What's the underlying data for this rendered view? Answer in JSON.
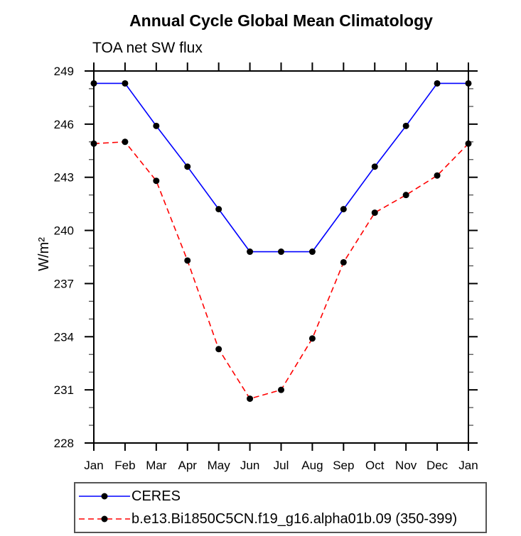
{
  "chart_data": {
    "type": "line",
    "title": "Annual Cycle Global Mean Climatology",
    "subtitle": "TOA net SW flux",
    "ylabel": "W/m²",
    "categories": [
      "Jan",
      "Feb",
      "Mar",
      "Apr",
      "May",
      "Jun",
      "Jul",
      "Aug",
      "Sep",
      "Oct",
      "Nov",
      "Dec",
      "Jan"
    ],
    "ylim": [
      228,
      249
    ],
    "yticks": [
      228,
      231,
      234,
      237,
      240,
      243,
      246,
      249
    ],
    "yminor_step": 1,
    "grid": false,
    "legend_position": "bottom",
    "axis_color": "#000000",
    "marker_color": "#000000",
    "series": [
      {
        "name": "CERES",
        "color": "#0000ff",
        "style": "solid",
        "marker": "filled-circle",
        "values": [
          248.3,
          248.3,
          245.9,
          243.6,
          241.2,
          238.8,
          238.8,
          238.8,
          241.2,
          243.6,
          245.9,
          248.3,
          248.3
        ]
      },
      {
        "name": "b.e13.Bi1850C5CN.f19_g16.alpha01b.09 (350-399)",
        "color": "#ff0000",
        "style": "dashed",
        "marker": "filled-circle",
        "values": [
          244.9,
          245.0,
          242.8,
          238.3,
          233.3,
          230.5,
          231.0,
          233.9,
          238.2,
          241.0,
          242.0,
          243.1,
          244.9
        ]
      }
    ]
  }
}
